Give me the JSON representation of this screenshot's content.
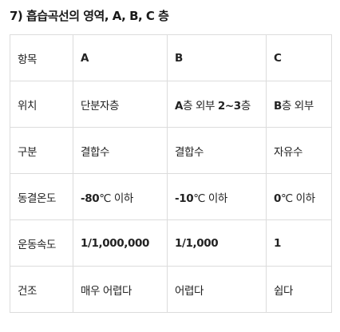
{
  "heading": "7) 흡습곡선의 영역, A, B, C 층",
  "table": {
    "header": [
      "항목",
      "A",
      "B",
      "C"
    ],
    "rows": [
      {
        "label": "위치",
        "a": "단분자층",
        "b_bold": "A",
        "b_rest": "층 외부 ",
        "b_bold2": "2~3",
        "b_rest2": "층",
        "c_bold": "B",
        "c_rest": "층 외부"
      },
      {
        "label": "구분",
        "a": "결합수",
        "b": "결합수",
        "c": "자유수"
      },
      {
        "label": "동결온도",
        "a_num": "-80",
        "a_unit": "℃ 이하",
        "b_num": "-10",
        "b_unit": "℃ 이하",
        "c_num": "0",
        "c_unit": "℃ 이하"
      },
      {
        "label": "운동속도",
        "a": "1/1,000,000",
        "b": "1/1,000",
        "c": "1"
      },
      {
        "label": "건조",
        "a": "매우 어렵다",
        "b": "어렵다",
        "c": "쉽다"
      }
    ]
  }
}
